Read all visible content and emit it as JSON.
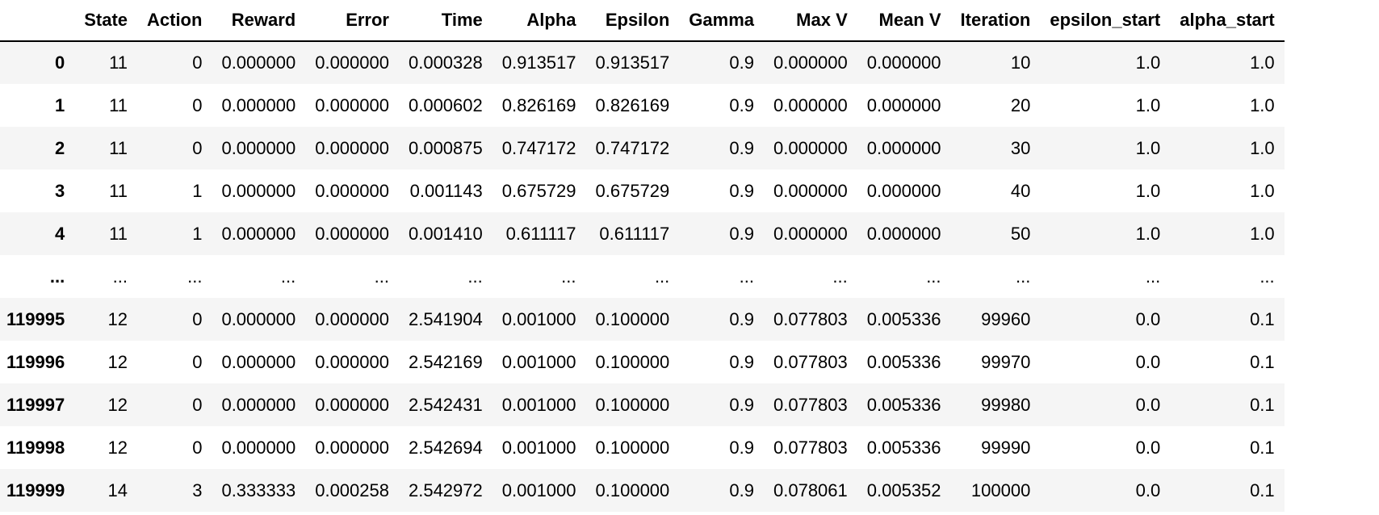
{
  "table": {
    "index_header": "",
    "columns": [
      "State",
      "Action",
      "Reward",
      "Error",
      "Time",
      "Alpha",
      "Epsilon",
      "Gamma",
      "Max V",
      "Mean V",
      "Iteration",
      "epsilon_start",
      "alpha_start"
    ],
    "rows": [
      {
        "index": "0",
        "cells": [
          "11",
          "0",
          "0.000000",
          "0.000000",
          "0.000328",
          "0.913517",
          "0.913517",
          "0.9",
          "0.000000",
          "0.000000",
          "10",
          "1.0",
          "1.0"
        ]
      },
      {
        "index": "1",
        "cells": [
          "11",
          "0",
          "0.000000",
          "0.000000",
          "0.000602",
          "0.826169",
          "0.826169",
          "0.9",
          "0.000000",
          "0.000000",
          "20",
          "1.0",
          "1.0"
        ]
      },
      {
        "index": "2",
        "cells": [
          "11",
          "0",
          "0.000000",
          "0.000000",
          "0.000875",
          "0.747172",
          "0.747172",
          "0.9",
          "0.000000",
          "0.000000",
          "30",
          "1.0",
          "1.0"
        ]
      },
      {
        "index": "3",
        "cells": [
          "11",
          "1",
          "0.000000",
          "0.000000",
          "0.001143",
          "0.675729",
          "0.675729",
          "0.9",
          "0.000000",
          "0.000000",
          "40",
          "1.0",
          "1.0"
        ]
      },
      {
        "index": "4",
        "cells": [
          "11",
          "1",
          "0.000000",
          "0.000000",
          "0.001410",
          "0.611117",
          "0.611117",
          "0.9",
          "0.000000",
          "0.000000",
          "50",
          "1.0",
          "1.0"
        ]
      },
      {
        "index": "...",
        "cells": [
          "...",
          "...",
          "...",
          "...",
          "...",
          "...",
          "...",
          "...",
          "...",
          "...",
          "...",
          "...",
          "..."
        ]
      },
      {
        "index": "119995",
        "cells": [
          "12",
          "0",
          "0.000000",
          "0.000000",
          "2.541904",
          "0.001000",
          "0.100000",
          "0.9",
          "0.077803",
          "0.005336",
          "99960",
          "0.0",
          "0.1"
        ]
      },
      {
        "index": "119996",
        "cells": [
          "12",
          "0",
          "0.000000",
          "0.000000",
          "2.542169",
          "0.001000",
          "0.100000",
          "0.9",
          "0.077803",
          "0.005336",
          "99970",
          "0.0",
          "0.1"
        ]
      },
      {
        "index": "119997",
        "cells": [
          "12",
          "0",
          "0.000000",
          "0.000000",
          "2.542431",
          "0.001000",
          "0.100000",
          "0.9",
          "0.077803",
          "0.005336",
          "99980",
          "0.0",
          "0.1"
        ]
      },
      {
        "index": "119998",
        "cells": [
          "12",
          "0",
          "0.000000",
          "0.000000",
          "2.542694",
          "0.001000",
          "0.100000",
          "0.9",
          "0.077803",
          "0.005336",
          "99990",
          "0.0",
          "0.1"
        ]
      },
      {
        "index": "119999",
        "cells": [
          "14",
          "3",
          "0.333333",
          "0.000258",
          "2.542972",
          "0.001000",
          "0.100000",
          "0.9",
          "0.078061",
          "0.005352",
          "100000",
          "0.0",
          "0.1"
        ]
      }
    ]
  },
  "colors": {
    "row_stripe": "#f5f5f5",
    "row_plain": "#ffffff",
    "header_rule": "#000000"
  }
}
